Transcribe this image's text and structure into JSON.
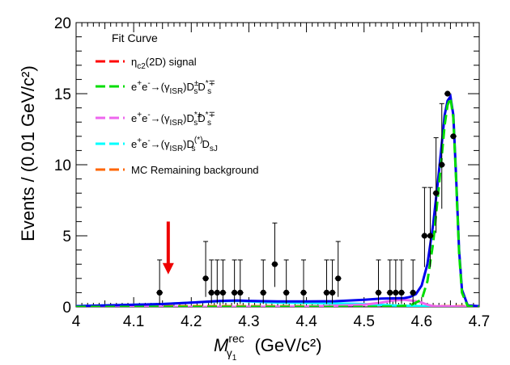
{
  "chart_data": {
    "type": "scatter",
    "title": "",
    "xlabel": {
      "main": "M",
      "sup": "rec",
      "sub": "γ",
      "subsub": "1",
      "units": "(GeV/c²)"
    },
    "ylabel": "Events / (0.01 GeV/c²)",
    "xlim": [
      4.0,
      4.7
    ],
    "ylim": [
      0,
      20
    ],
    "x_ticks": [
      "4",
      "4.1",
      "4.2",
      "4.3",
      "4.4",
      "4.5",
      "4.6",
      "4.7"
    ],
    "y_ticks": [
      "0",
      "5",
      "10",
      "15",
      "20"
    ],
    "legend": {
      "title": "Fit Curve",
      "placement": "top-left",
      "entries": [
        {
          "label": "η_c2(2D) signal",
          "color": "#ff0000"
        },
        {
          "label": "e⁺e⁻→(γ_ISR)D_s^± D_s^*∓",
          "color": "#00dd00"
        },
        {
          "label": "e⁺e⁻→(γ_ISR)D_s^*± D_s^*∓",
          "color": "#ee66ee"
        },
        {
          "label": "e⁺e⁻→(γ_ISR)D_s^(*) D_sJ",
          "color": "#00ffff"
        },
        {
          "label": "MC Remaining background",
          "color": "#ff6600"
        }
      ]
    },
    "data_points": [
      {
        "x": 4.145,
        "y": 1,
        "err_up": 2.3,
        "err_down": 0.8
      },
      {
        "x": 4.225,
        "y": 2,
        "err_up": 2.6,
        "err_down": 1.3
      },
      {
        "x": 4.235,
        "y": 1,
        "err_up": 2.3,
        "err_down": 0.8
      },
      {
        "x": 4.245,
        "y": 1,
        "err_up": 2.3,
        "err_down": 0.8
      },
      {
        "x": 4.255,
        "y": 1,
        "err_up": 2.3,
        "err_down": 0.8
      },
      {
        "x": 4.275,
        "y": 1,
        "err_up": 2.3,
        "err_down": 0.8
      },
      {
        "x": 4.285,
        "y": 1,
        "err_up": 2.3,
        "err_down": 0.8
      },
      {
        "x": 4.325,
        "y": 1,
        "err_up": 2.3,
        "err_down": 0.8
      },
      {
        "x": 4.345,
        "y": 3,
        "err_up": 2.9,
        "err_down": 1.6
      },
      {
        "x": 4.365,
        "y": 1,
        "err_up": 2.3,
        "err_down": 0.8
      },
      {
        "x": 4.395,
        "y": 1,
        "err_up": 2.3,
        "err_down": 0.8
      },
      {
        "x": 4.435,
        "y": 1,
        "err_up": 2.3,
        "err_down": 0.8
      },
      {
        "x": 4.445,
        "y": 1,
        "err_up": 2.3,
        "err_down": 0.8
      },
      {
        "x": 4.455,
        "y": 2,
        "err_up": 2.6,
        "err_down": 1.3
      },
      {
        "x": 4.525,
        "y": 1,
        "err_up": 2.3,
        "err_down": 0.8
      },
      {
        "x": 4.545,
        "y": 1,
        "err_up": 2.3,
        "err_down": 0.8
      },
      {
        "x": 4.555,
        "y": 1,
        "err_up": 2.3,
        "err_down": 0.8
      },
      {
        "x": 4.565,
        "y": 1,
        "err_up": 2.3,
        "err_down": 0.8
      },
      {
        "x": 4.585,
        "y": 1,
        "err_up": 2.3,
        "err_down": 0.8
      },
      {
        "x": 4.605,
        "y": 5,
        "err_up": 3.4,
        "err_down": 2.2
      },
      {
        "x": 4.615,
        "y": 5,
        "err_up": 3.4,
        "err_down": 2.2
      },
      {
        "x": 4.625,
        "y": 8,
        "err_up": 3.9,
        "err_down": 2.8
      },
      {
        "x": 4.635,
        "y": 10,
        "err_up": 4.3,
        "err_down": 3.1
      },
      {
        "x": 4.645,
        "y": 15,
        "err_up": 0,
        "err_down": 0
      },
      {
        "x": 4.655,
        "y": 12,
        "err_up": 0,
        "err_down": 0
      }
    ],
    "curves": {
      "total": {
        "color": "#0000ee",
        "x": [
          4.0,
          4.05,
          4.1,
          4.15,
          4.2,
          4.25,
          4.28,
          4.3,
          4.35,
          4.4,
          4.45,
          4.5,
          4.53,
          4.55,
          4.57,
          4.58,
          4.59,
          4.6,
          4.61,
          4.62,
          4.63,
          4.64,
          4.645,
          4.65,
          4.655,
          4.66,
          4.665,
          4.67,
          4.68,
          4.7
        ],
        "y": [
          0.05,
          0.1,
          0.15,
          0.2,
          0.3,
          0.42,
          0.45,
          0.42,
          0.38,
          0.38,
          0.4,
          0.5,
          0.58,
          0.6,
          0.62,
          0.7,
          0.9,
          1.5,
          3.0,
          5.8,
          9.5,
          13.5,
          14.5,
          14.8,
          13.5,
          9.0,
          4.0,
          1.2,
          0.1,
          0.05
        ]
      },
      "ds_dsstar": {
        "color": "#00dd00",
        "x": [
          4.0,
          4.5,
          4.55,
          4.58,
          4.6,
          4.61,
          4.62,
          4.63,
          4.64,
          4.645,
          4.65,
          4.655,
          4.66,
          4.665,
          4.67,
          4.68,
          4.7
        ],
        "y": [
          0.0,
          0.0,
          0.02,
          0.1,
          0.5,
          1.8,
          4.5,
          8.5,
          12.8,
          14.2,
          14.7,
          13.3,
          8.8,
          3.8,
          1.0,
          0.05,
          0.0
        ]
      },
      "dsstar_dsstar": {
        "color": "#ee66ee",
        "x": [
          4.0,
          4.2,
          4.4,
          4.5,
          4.53,
          4.55,
          4.57,
          4.59,
          4.6,
          4.61,
          4.62,
          4.7
        ],
        "y": [
          0.0,
          0.0,
          0.02,
          0.15,
          0.3,
          0.45,
          0.5,
          0.4,
          0.3,
          0.15,
          0.05,
          0.0
        ]
      },
      "ds_dsj": {
        "color": "#00ffff",
        "x": [
          4.0,
          4.05,
          4.1,
          4.15,
          4.2,
          4.25,
          4.28,
          4.3,
          4.35,
          4.4,
          4.45,
          4.5,
          4.55,
          4.6,
          4.62,
          4.65,
          4.7
        ],
        "y": [
          0.05,
          0.1,
          0.15,
          0.2,
          0.3,
          0.4,
          0.42,
          0.38,
          0.3,
          0.28,
          0.25,
          0.2,
          0.1,
          0.05,
          0.0,
          0.0,
          0.0
        ]
      },
      "mc_remaining": {
        "color": "#ff6600",
        "x": [
          4.0,
          4.7
        ],
        "y": [
          0.05,
          0.05
        ]
      },
      "signal": {
        "color": "#ff0000",
        "x": [
          4.0,
          4.7
        ],
        "y": [
          0.0,
          0.0
        ]
      }
    },
    "arrow": {
      "x": 4.16,
      "y_top": 6.0,
      "y_bottom": 2.4,
      "color": "#ee0000"
    },
    "grid": false
  }
}
